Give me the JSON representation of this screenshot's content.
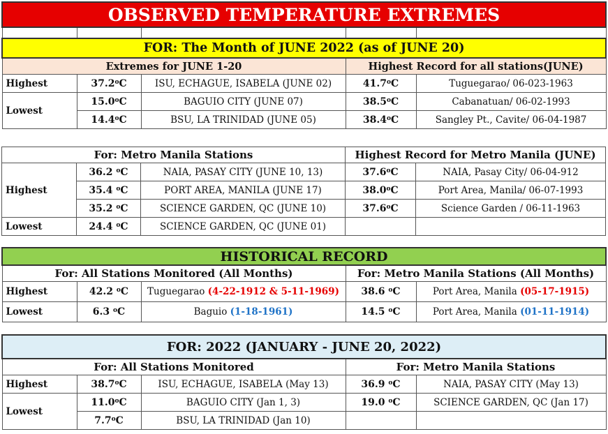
{
  "title": "OBSERVED TEMPERATURE EXTREMES",
  "month_banner": "FOR:  The Month of JUNE 2022 (as of  JUNE 20)",
  "unit": "C",
  "degree": "o",
  "june": {
    "left_header": "Extremes for JUNE 1-20",
    "right_header": "Highest Record for all stations(JUNE)",
    "highest_label": "Highest",
    "lowest_label": "Lowest",
    "rows": [
      {
        "temp": "37.2",
        "station": "ISU, ECHAGUE, ISABELA (JUNE 02)",
        "rec_temp": "41.7",
        "rec_station": "Tuguegarao/ 06-023-1963"
      },
      {
        "temp": "15.0",
        "station": "BAGUIO CITY  (JUNE 07)",
        "rec_temp": "38.5",
        "rec_station": "Cabanatuan/ 06-02-1993"
      },
      {
        "temp": "14.4",
        "station": "BSU, LA TRINIDAD (JUNE 05)",
        "rec_temp": "38.4",
        "rec_station": "Sangley Pt., Cavite/ 06-04-1987"
      }
    ]
  },
  "metro": {
    "left_header": "For: Metro Manila Stations",
    "right_header": "Highest Record for Metro Manila (JUNE)",
    "highest_label": "Highest",
    "lowest_label": "Lowest",
    "rows": [
      {
        "temp": "36.2 ",
        "station": "NAIA, PASAY CITY (JUNE 10, 13)",
        "rec_temp": "37.6",
        "rec_station": "NAIA, Pasay City/  06-04-912"
      },
      {
        "temp": "35.4 ",
        "station": "PORT AREA, MANILA (JUNE 17)",
        "rec_temp": "38.0",
        "rec_station": "Port Area, Manila/ 06-07-1993"
      },
      {
        "temp": "35.2 ",
        "station": "SCIENCE GARDEN, QC (JUNE 10)",
        "rec_temp": "37.6",
        "rec_station": "Science Garden / 06-11-1963"
      },
      {
        "temp": "24.4 ",
        "station": "SCIENCE GARDEN, QC (JUNE 01)"
      }
    ]
  },
  "historical": {
    "banner": "HISTORICAL RECORD",
    "left_header": "For:  All Stations Monitored (All Months)",
    "right_header": "For: Metro Manila Stations (All Months)",
    "highest_label": "Highest",
    "lowest_label": "Lowest",
    "high": {
      "temp": "42.2 ",
      "station": "Tuguegarao ",
      "dates": "(4-22-1912 & 5-11-1969)",
      "mm_temp": "38.6 ",
      "mm_station": "Port Area, Manila ",
      "mm_date": "(05-17-1915)"
    },
    "low": {
      "temp": "6.3 ",
      "station": "Baguio ",
      "dates": "(1-18-1961)",
      "mm_temp": "14.5 ",
      "mm_station": "Port Area, Manila ",
      "mm_date": "(01-11-1914)"
    }
  },
  "year": {
    "banner": "FOR:    2022 (JANUARY - JUNE 20, 2022)",
    "left_header": "For:  All Stations Monitored",
    "right_header": "For: Metro Manila Stations",
    "highest_label": "Highest",
    "lowest_label": "Lowest",
    "rows": [
      {
        "temp": "38.7",
        "station": "ISU, ECHAGUE, ISABELA (May 13)",
        "mm_temp": "36.9 ",
        "mm_station": "NAIA, PASAY CITY (May 13)"
      },
      {
        "temp": "11.0",
        "station": "BAGUIO CITY  (Jan 1, 3)",
        "mm_temp": "19.0 ",
        "mm_station": "SCIENCE GARDEN, QC (Jan 17)"
      },
      {
        "temp": "7.7",
        "station": "BSU, LA TRINIDAD (Jan 10)"
      }
    ]
  },
  "colors": {
    "title_bg": "#e60000",
    "yellow": "#ffff00",
    "peach": "#fbe5d6",
    "green": "#92d050",
    "light_blue": "#ddeef6",
    "red_text": "#e60000",
    "blue_text": "#1f73c7"
  }
}
